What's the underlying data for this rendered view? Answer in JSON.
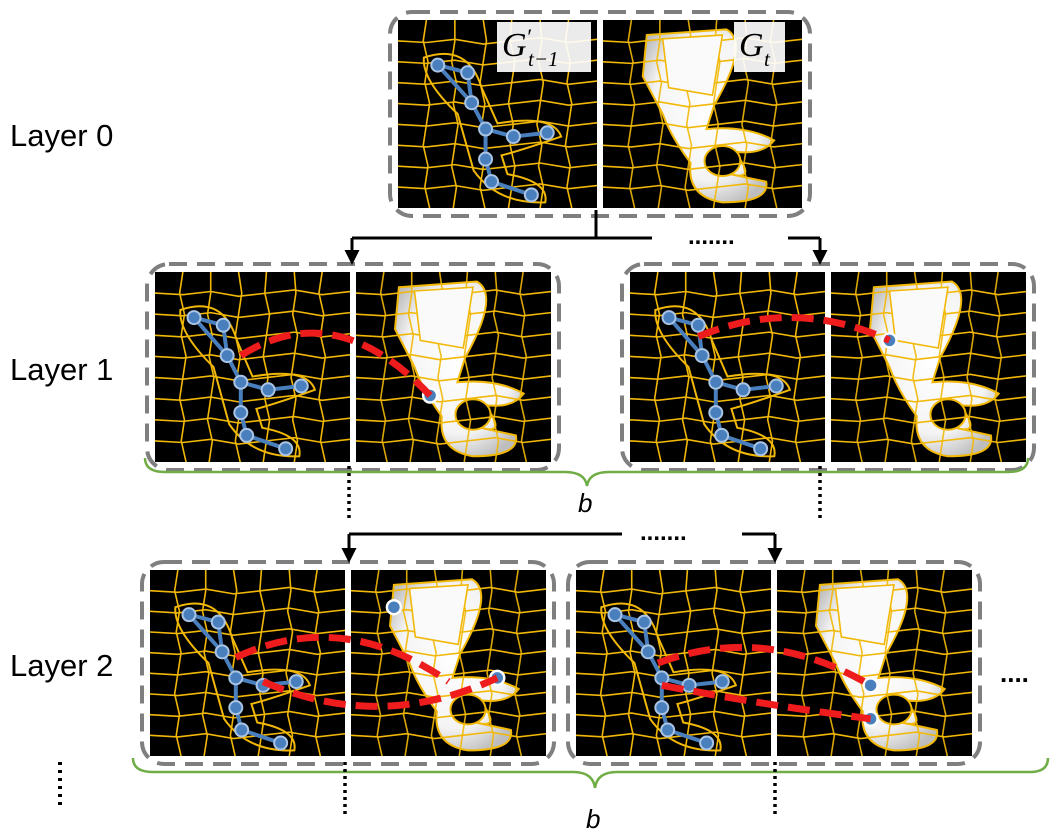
{
  "layers": [
    {
      "label": "Layer 0"
    },
    {
      "label": "Layer 1"
    },
    {
      "label": "Layer 2"
    }
  ],
  "graph_labels": {
    "previous": {
      "main": "G",
      "prime": "′",
      "subscript": "t−1"
    },
    "current": {
      "main": "G",
      "subscript": "t"
    }
  },
  "brace_label": "b",
  "ellipsis": {
    "dots_h": ".......",
    "dots_end": "....",
    "dots_v": "⋮"
  },
  "colors": {
    "grid_line": "#f2b807",
    "cell_background": "#000000",
    "node": "#4a7fbd",
    "node_stroke": "#2e5f96",
    "match_edge": "#ee1c1c",
    "box_border": "#7f7f7f",
    "brace": "#70ad47",
    "arrow": "#000000"
  }
}
